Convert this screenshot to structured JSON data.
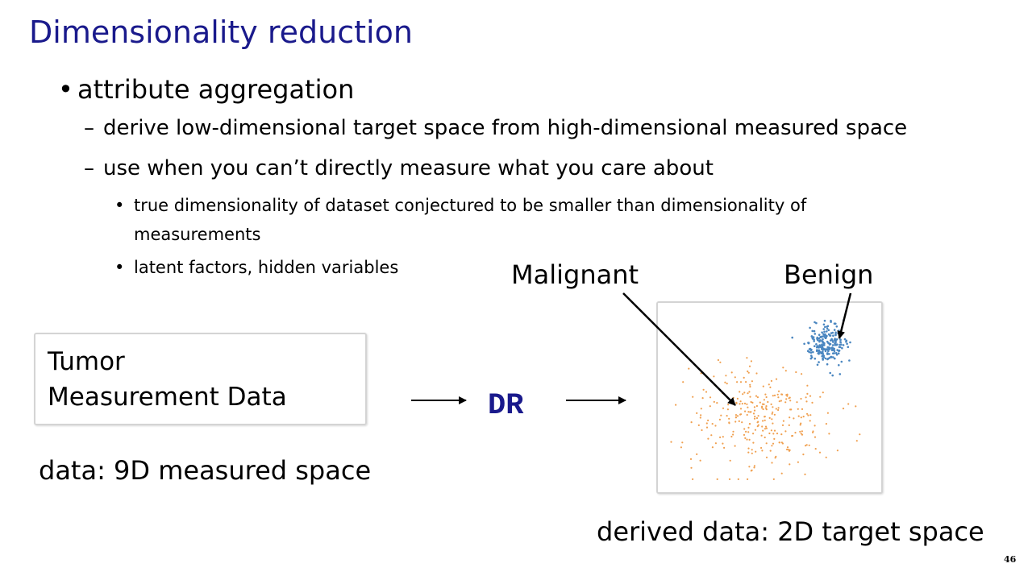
{
  "slide": {
    "title": "Dimensionality reduction",
    "bullet_main": "attribute aggregation",
    "sub1": "derive low-dimensional target space from high-dimensional measured space",
    "sub2": "use when you can’t directly measure what you care about",
    "subsub1_line1": "true dimensionality of dataset conjectured to be smaller than dimensionality of",
    "subsub1_line2": "measurements",
    "subsub2": "latent factors, hidden variables",
    "page_number": "46"
  },
  "diagram": {
    "input_line1": "Tumor",
    "input_line2": "Measurement Data",
    "input_caption": "data: 9D measured space",
    "process_label": "DR",
    "output_caption": "derived data: 2D target space",
    "label_malignant": "Malignant",
    "label_benign": "Benign"
  },
  "colors": {
    "title": "#1a1a8c",
    "malignant_points": "#f0a050",
    "benign_points": "#4a86c0"
  },
  "chart_data": {
    "type": "scatter",
    "title": "",
    "xlabel": "",
    "ylabel": "",
    "xlim": [
      0,
      100
    ],
    "ylim": [
      0,
      100
    ],
    "series": [
      {
        "name": "Malignant",
        "color": "#f0a050",
        "n": 300,
        "center": [
          45,
          38
        ],
        "spread": [
          22,
          20
        ]
      },
      {
        "name": "Benign",
        "color": "#4a86c0",
        "n": 230,
        "center": [
          78,
          82
        ],
        "spread": [
          6,
          7
        ]
      }
    ]
  }
}
